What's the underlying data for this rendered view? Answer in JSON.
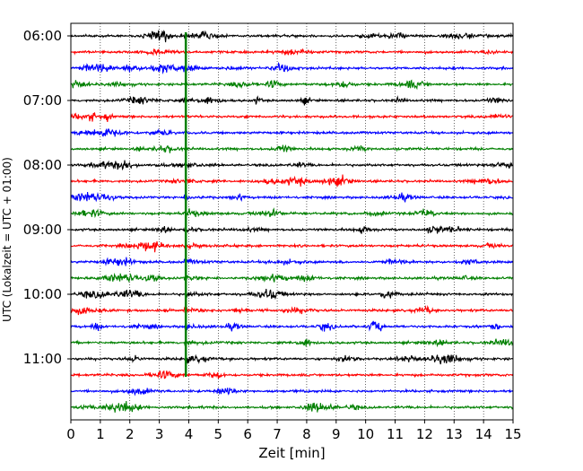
{
  "chart_data": {
    "type": "line",
    "title": "",
    "xlabel": "Zeit  [min]",
    "ylabel": "UTC (Lokalzeit = UTC + 01:00)",
    "xlim": [
      0,
      15
    ],
    "x_ticks": [
      "0",
      "1",
      "2",
      "3",
      "4",
      "5",
      "6",
      "7",
      "8",
      "9",
      "10",
      "11",
      "12",
      "13",
      "14",
      "15"
    ],
    "y_ticks": [
      "06:00",
      "07:00",
      "08:00",
      "09:00",
      "10:00",
      "11:00"
    ],
    "trace_start": "06:00",
    "trace_interval_min": 15,
    "trace_count": 24,
    "grid": true,
    "colors": [
      "#000000",
      "#ff0000",
      "#0000ff",
      "#008000"
    ],
    "event": {
      "x": 3.9,
      "color": "#008000"
    }
  }
}
